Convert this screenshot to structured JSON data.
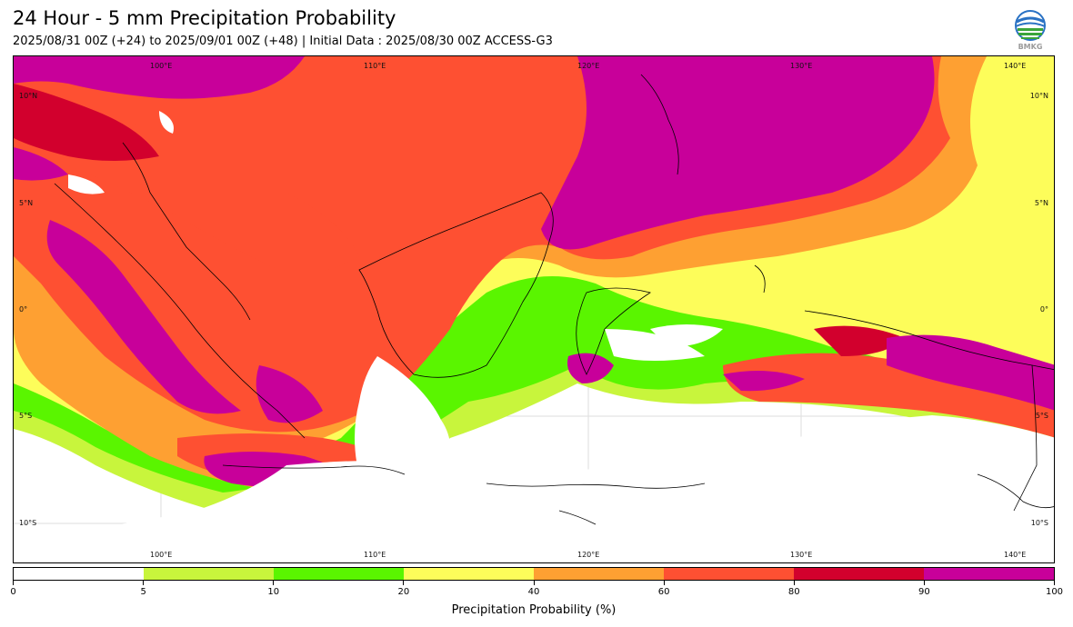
{
  "title": "24 Hour - 5 mm Precipitation Probability",
  "subtitle": "2025/08/31 00Z (+24) to 2025/09/01 00Z (+48) | Initial Data : 2025/08/30 00Z ACCESS-G3",
  "logo": {
    "icon": "bmkg-logo",
    "text": "BMKG"
  },
  "map": {
    "lon_top": [
      "100°E",
      "110°E",
      "120°E",
      "130°E",
      "140°E"
    ],
    "lon_bottom": [
      "100°E",
      "110°E",
      "120°E",
      "130°E",
      "140°E"
    ],
    "lat_left": [
      "10°N",
      "5°N",
      "0°",
      "5°S",
      "10°S"
    ],
    "lat_right": [
      "10°N",
      "5°N",
      "0°",
      "5°S",
      "10°S"
    ]
  },
  "colorbar": {
    "colors": [
      "#ffffff",
      "#c8f53c",
      "#5af500",
      "#fdfd5a",
      "#fea032",
      "#fe5032",
      "#d2002d",
      "#c8009a"
    ],
    "ticks": [
      "0",
      "5",
      "10",
      "20",
      "40",
      "60",
      "80",
      "90",
      "100"
    ],
    "label": "Precipitation Probability (%)"
  }
}
